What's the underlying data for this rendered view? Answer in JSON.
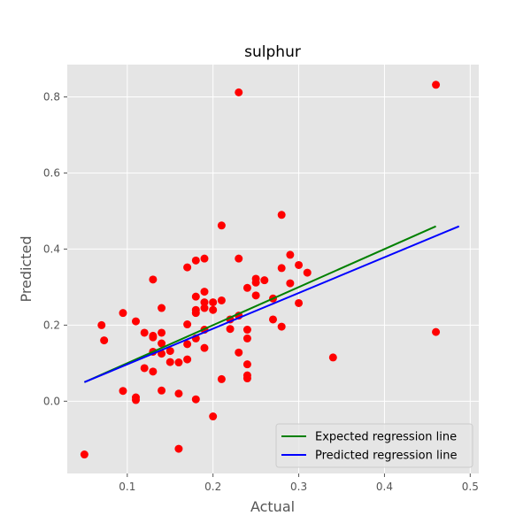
{
  "chart_data": {
    "type": "scatter",
    "title": "sulphur",
    "xlabel": "Actual",
    "ylabel": "Predicted",
    "xlim": [
      0.03,
      0.51
    ],
    "ylim": [
      -0.19,
      0.885
    ],
    "x_ticks": [
      0.1,
      0.2,
      0.3,
      0.4,
      0.5
    ],
    "x_tick_labels": [
      "0.1",
      "0.2",
      "0.3",
      "0.4",
      "0.5"
    ],
    "y_ticks": [
      0.0,
      0.2,
      0.4,
      0.6,
      0.8
    ],
    "y_tick_labels": [
      "0.0",
      "0.2",
      "0.4",
      "0.6",
      "0.8"
    ],
    "grid": true,
    "legend_position": "bottom-right",
    "colors": {
      "background": "#e5e5e5",
      "grid": "#ffffff",
      "points": "#ff0000",
      "expected": "#008000",
      "predicted": "#0000ff"
    },
    "points": [
      {
        "x": 0.05,
        "y": -0.14
      },
      {
        "x": 0.07,
        "y": 0.2
      },
      {
        "x": 0.073,
        "y": 0.16
      },
      {
        "x": 0.095,
        "y": 0.232
      },
      {
        "x": 0.095,
        "y": 0.027
      },
      {
        "x": 0.11,
        "y": 0.21
      },
      {
        "x": 0.11,
        "y": 0.01
      },
      {
        "x": 0.11,
        "y": 0.003
      },
      {
        "x": 0.12,
        "y": 0.18
      },
      {
        "x": 0.12,
        "y": 0.087
      },
      {
        "x": 0.13,
        "y": 0.32
      },
      {
        "x": 0.13,
        "y": 0.172
      },
      {
        "x": 0.13,
        "y": 0.168
      },
      {
        "x": 0.13,
        "y": 0.13
      },
      {
        "x": 0.13,
        "y": 0.078
      },
      {
        "x": 0.14,
        "y": 0.245
      },
      {
        "x": 0.14,
        "y": 0.18
      },
      {
        "x": 0.14,
        "y": 0.152
      },
      {
        "x": 0.14,
        "y": 0.125
      },
      {
        "x": 0.14,
        "y": 0.028
      },
      {
        "x": 0.15,
        "y": 0.132
      },
      {
        "x": 0.15,
        "y": 0.103
      },
      {
        "x": 0.16,
        "y": 0.102
      },
      {
        "x": 0.16,
        "y": 0.02
      },
      {
        "x": 0.16,
        "y": -0.125
      },
      {
        "x": 0.17,
        "y": 0.352
      },
      {
        "x": 0.17,
        "y": 0.202
      },
      {
        "x": 0.17,
        "y": 0.15
      },
      {
        "x": 0.17,
        "y": 0.11
      },
      {
        "x": 0.18,
        "y": 0.37
      },
      {
        "x": 0.18,
        "y": 0.275
      },
      {
        "x": 0.18,
        "y": 0.24
      },
      {
        "x": 0.18,
        "y": 0.232
      },
      {
        "x": 0.18,
        "y": 0.165
      },
      {
        "x": 0.18,
        "y": 0.005
      },
      {
        "x": 0.19,
        "y": 0.375
      },
      {
        "x": 0.19,
        "y": 0.288
      },
      {
        "x": 0.19,
        "y": 0.26
      },
      {
        "x": 0.19,
        "y": 0.245
      },
      {
        "x": 0.19,
        "y": 0.188
      },
      {
        "x": 0.19,
        "y": 0.14
      },
      {
        "x": 0.2,
        "y": 0.26
      },
      {
        "x": 0.2,
        "y": 0.24
      },
      {
        "x": 0.2,
        "y": -0.04
      },
      {
        "x": 0.21,
        "y": 0.462
      },
      {
        "x": 0.21,
        "y": 0.265
      },
      {
        "x": 0.21,
        "y": 0.058
      },
      {
        "x": 0.22,
        "y": 0.215
      },
      {
        "x": 0.22,
        "y": 0.19
      },
      {
        "x": 0.23,
        "y": 0.812
      },
      {
        "x": 0.23,
        "y": 0.375
      },
      {
        "x": 0.23,
        "y": 0.225
      },
      {
        "x": 0.23,
        "y": 0.128
      },
      {
        "x": 0.24,
        "y": 0.298
      },
      {
        "x": 0.24,
        "y": 0.188
      },
      {
        "x": 0.24,
        "y": 0.165
      },
      {
        "x": 0.24,
        "y": 0.097
      },
      {
        "x": 0.24,
        "y": 0.068
      },
      {
        "x": 0.24,
        "y": 0.06
      },
      {
        "x": 0.25,
        "y": 0.322
      },
      {
        "x": 0.25,
        "y": 0.312
      },
      {
        "x": 0.25,
        "y": 0.278
      },
      {
        "x": 0.26,
        "y": 0.318
      },
      {
        "x": 0.27,
        "y": 0.27
      },
      {
        "x": 0.27,
        "y": 0.215
      },
      {
        "x": 0.28,
        "y": 0.49
      },
      {
        "x": 0.28,
        "y": 0.35
      },
      {
        "x": 0.28,
        "y": 0.196
      },
      {
        "x": 0.29,
        "y": 0.385
      },
      {
        "x": 0.29,
        "y": 0.31
      },
      {
        "x": 0.3,
        "y": 0.358
      },
      {
        "x": 0.3,
        "y": 0.258
      },
      {
        "x": 0.31,
        "y": 0.338
      },
      {
        "x": 0.34,
        "y": 0.115
      },
      {
        "x": 0.46,
        "y": 0.832
      },
      {
        "x": 0.46,
        "y": 0.182
      }
    ],
    "series": [
      {
        "name": "Expected regression line",
        "x": [
          0.05,
          0.46
        ],
        "y": [
          0.05,
          0.46
        ]
      },
      {
        "name": "Predicted regression line",
        "x": [
          0.05,
          0.487
        ],
        "y": [
          0.05,
          0.46
        ]
      }
    ]
  }
}
